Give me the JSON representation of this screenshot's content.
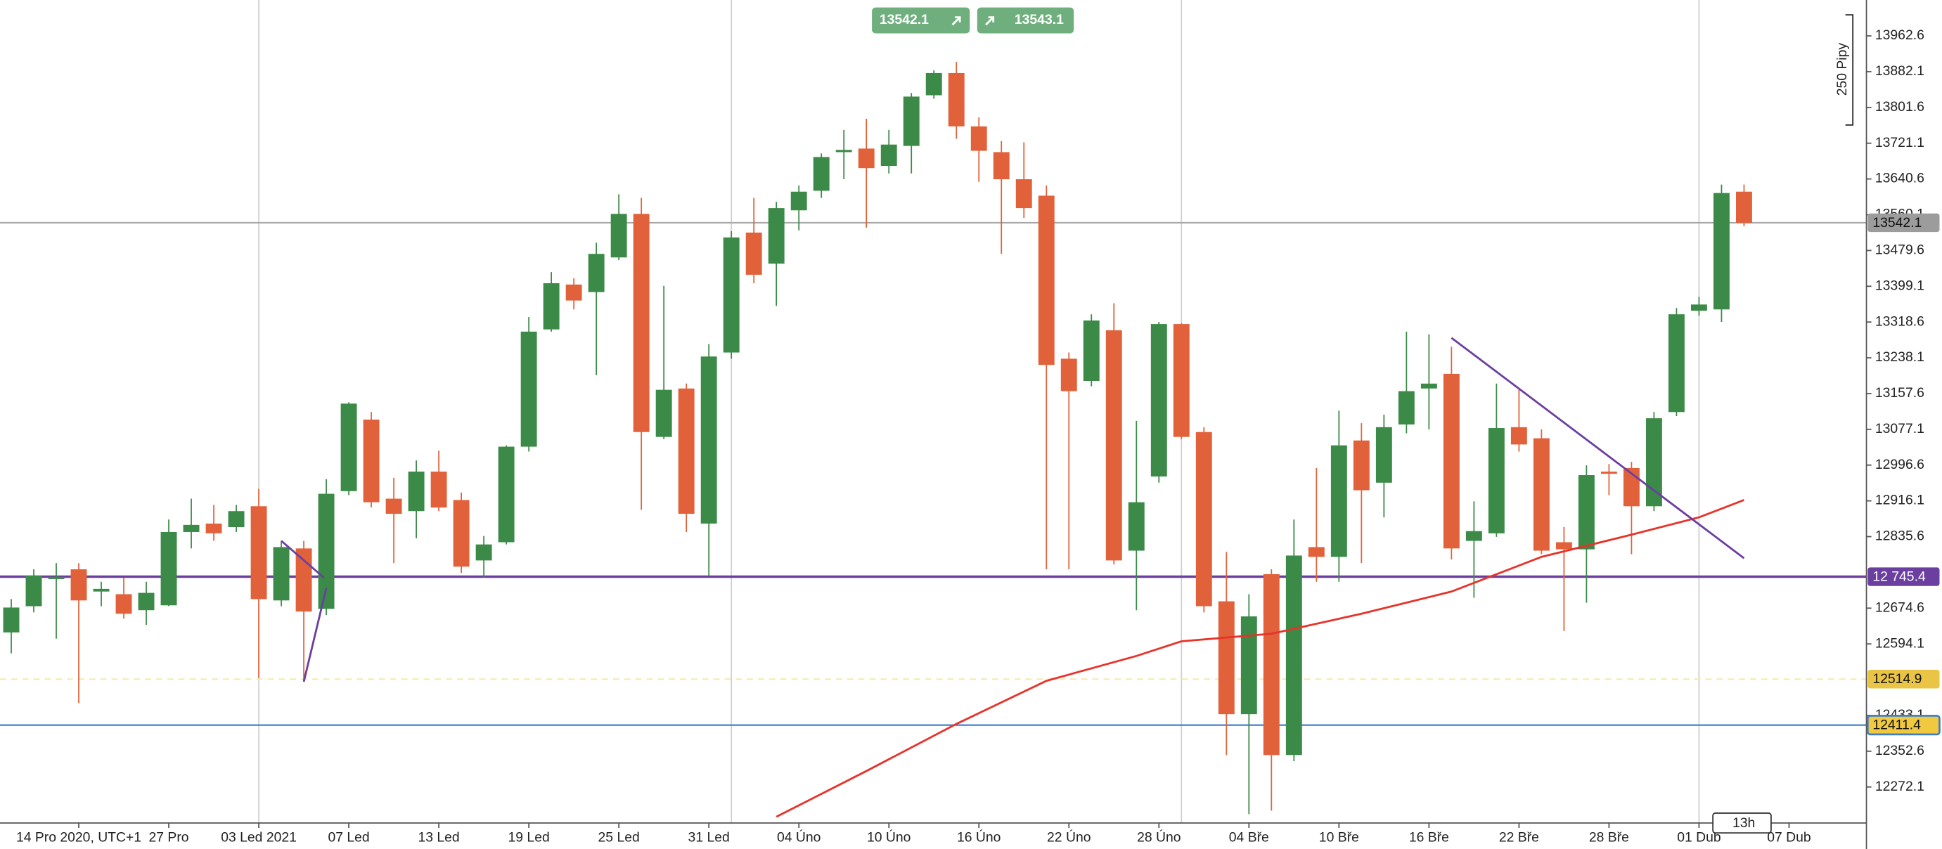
{
  "chart_data": {
    "type": "candlestick",
    "up_color": "#3b8a47",
    "down_color": "#e1623a",
    "xlim": [
      -0.5,
      82.44
    ],
    "ylim": [
      12191,
      14043.4
    ],
    "yticks": [
      13962.6,
      13882.1,
      13801.6,
      13721.1,
      13640.6,
      13560.1,
      13479.6,
      13399.1,
      13318.6,
      13238.1,
      13157.6,
      13077.1,
      12996.6,
      12916.1,
      12835.6,
      12674.6,
      12594.1,
      12433.1,
      12352.6,
      12272.1
    ],
    "xticks": [
      {
        "value": 3,
        "label": "14 Pro 2020, UTC+1"
      },
      {
        "value": 7,
        "label": "27 Pro"
      },
      {
        "value": 11,
        "label": "03 Led 2021"
      },
      {
        "value": 15,
        "label": "07 Led"
      },
      {
        "value": 19,
        "label": "13 Led"
      },
      {
        "value": 23,
        "label": "19 Led"
      },
      {
        "value": 27,
        "label": "25 Led"
      },
      {
        "value": 31,
        "label": "31 Led"
      },
      {
        "value": 35,
        "label": "04 Úno"
      },
      {
        "value": 39,
        "label": "10 Úno"
      },
      {
        "value": 43,
        "label": "16 Úno"
      },
      {
        "value": 47,
        "label": "22 Úno"
      },
      {
        "value": 51,
        "label": "28 Úno"
      },
      {
        "value": 55,
        "label": "04 Bře"
      },
      {
        "value": 59,
        "label": "10 Bře"
      },
      {
        "value": 63,
        "label": "16 Bře"
      },
      {
        "value": 67,
        "label": "22 Bře"
      },
      {
        "value": 71,
        "label": "28 Bře"
      },
      {
        "value": 75,
        "label": "01 Dub"
      },
      {
        "value": 79,
        "label": "07 Dub"
      }
    ],
    "vgrid": [
      11,
      32,
      52,
      75
    ],
    "open": [
      12620,
      12679,
      12740,
      12762,
      12712,
      12706,
      12670,
      12681,
      12846,
      12865,
      12857,
      12904,
      12692,
      12809,
      12673,
      12938,
      13099,
      12921,
      12893,
      12982,
      12918,
      12782,
      12823,
      13038,
      13302,
      13403,
      13386,
      13464,
      13562,
      13060,
      13169,
      12865,
      13250,
      13520,
      13450,
      13570,
      13614,
      13701,
      13709,
      13670,
      13715,
      13829,
      13879,
      13759,
      13701,
      13640,
      13603,
      13236,
      13186,
      13300,
      12804,
      12971,
      13314,
      13071,
      12690,
      12436,
      12751,
      12344,
      12812,
      12790,
      13052,
      12957,
      13088,
      13169,
      13202,
      12826,
      12843,
      13082,
      13057,
      12823,
      12807,
      12982,
      12990,
      12904,
      13116,
      13344,
      13347,
      13612
    ],
    "high": [
      12695,
      12762,
      12776,
      12776,
      12734,
      12743,
      12734,
      12874,
      12921,
      12907,
      12907,
      12943,
      12826,
      12826,
      12965,
      13138,
      13116,
      12968,
      13007,
      13029,
      12935,
      12837,
      13041,
      13330,
      13431,
      13417,
      13497,
      13606,
      13598,
      13400,
      13180,
      13269,
      13523,
      13598,
      13589,
      13626,
      13698,
      13751,
      13776,
      13751,
      13834,
      13885,
      13904,
      13779,
      13726,
      13723,
      13626,
      13250,
      13336,
      13361,
      13096,
      13319,
      13316,
      13082,
      12801,
      12706,
      12762,
      12874,
      12990,
      13119,
      13091,
      13110,
      13297,
      13291,
      13263,
      12915,
      13180,
      13166,
      13077,
      12857,
      12996,
      12999,
      13004,
      13116,
      13350,
      13375,
      13628,
      13628
    ],
    "low": [
      12573,
      12665,
      12606,
      12461,
      12679,
      12651,
      12637,
      12679,
      12809,
      12826,
      12846,
      12517,
      12679,
      12511,
      12659,
      12929,
      12901,
      12776,
      12832,
      12893,
      12754,
      12743,
      12818,
      13027,
      13297,
      13347,
      13199,
      13458,
      12896,
      13055,
      12846,
      12748,
      13236,
      13406,
      13355,
      13525,
      13598,
      13640,
      13531,
      13653,
      13653,
      13821,
      13731,
      13634,
      13472,
      13553,
      12762,
      12762,
      13174,
      12773,
      12670,
      12957,
      13055,
      12665,
      12344,
      12211,
      12219,
      12330,
      12734,
      12734,
      12776,
      12879,
      13068,
      13077,
      12784,
      12698,
      12835,
      13027,
      12796,
      12623,
      12687,
      12929,
      12796,
      12893,
      13107,
      13333,
      13319,
      13534
    ],
    "close": [
      12676,
      12748,
      12745,
      12692,
      12718,
      12662,
      12709,
      12846,
      12862,
      12843,
      12893,
      12695,
      12812,
      12667,
      12932,
      13135,
      12913,
      12887,
      12982,
      12901,
      12768,
      12818,
      13038,
      13297,
      13406,
      13367,
      13472,
      13562,
      13071,
      13166,
      12887,
      13241,
      13509,
      13425,
      13575,
      13612,
      13690,
      13706,
      13665,
      13718,
      13826,
      13879,
      13759,
      13704,
      13640,
      13575,
      13222,
      13163,
      13322,
      12782,
      12913,
      13314,
      13060,
      12679,
      12436,
      12656,
      12344,
      12793,
      12790,
      13041,
      12940,
      13082,
      13163,
      13180,
      12809,
      12848,
      13080,
      13043,
      12804,
      12807,
      12974,
      12977,
      12904,
      13102,
      13336,
      13358,
      13609,
      13542
    ],
    "ma": {
      "color": "#e8322a",
      "x": [
        34,
        38,
        42,
        46,
        50,
        52,
        56,
        60,
        64,
        68,
        72,
        75,
        77
      ],
      "values": [
        12205,
        12308,
        12414,
        12511,
        12567,
        12600,
        12617,
        12662,
        12712,
        12790,
        12840,
        12879,
        12918
      ]
    },
    "trendlines": [
      {
        "color": "#6b3fa0",
        "x": [
          64,
          77
        ],
        "values": [
          13283,
          12787
        ]
      },
      {
        "color": "#6b3fa0",
        "x": [
          12,
          13.9
        ],
        "values": [
          12826,
          12743
        ]
      },
      {
        "color": "#6b3fa0",
        "x": [
          13,
          14
        ],
        "values": [
          12509,
          12720
        ]
      }
    ],
    "hlines": [
      {
        "value": 13542.1,
        "color": "#a8a8a8",
        "tag_color": "#9c9c9c",
        "text_color": "#111111"
      },
      {
        "value": 12745.4,
        "label": "12 745.4",
        "color": "#6b3fa0",
        "tag_color": "#6b3fa0",
        "text_color": "#ffffff",
        "width": 2
      },
      {
        "value": 12514.9,
        "color": "#f3eab0",
        "tag_color": "#e9c445",
        "text_color": "#111111",
        "dashed": true
      },
      {
        "value": 12411.4,
        "color": "#3d7cc9",
        "tag_color": "#f0c93e",
        "text_color": "#111111",
        "border": "#3d7cc9"
      }
    ],
    "bid": 13542.1,
    "ask": 13543.1,
    "range_label": "250 Pipy",
    "timeframe": "13h"
  }
}
